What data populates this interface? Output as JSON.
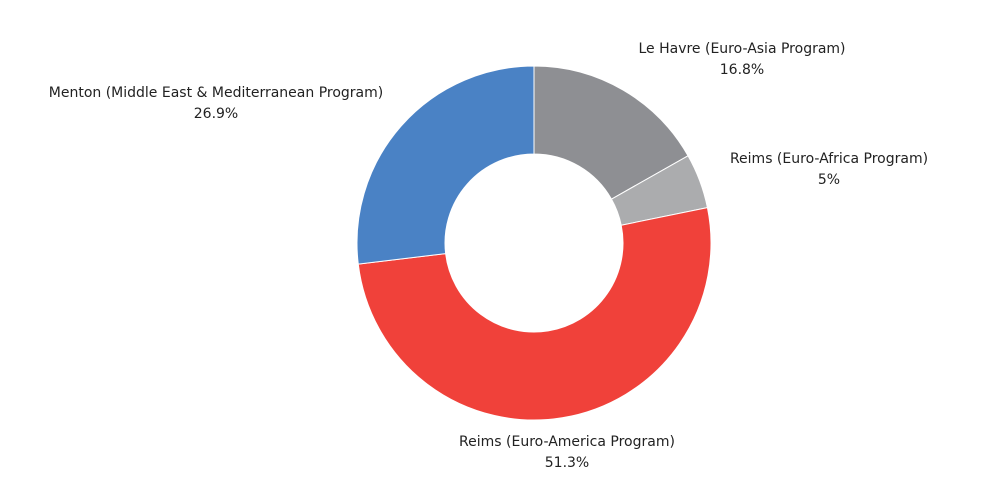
{
  "chart_data": {
    "type": "pie",
    "variant": "donut",
    "title": "",
    "slices": [
      {
        "label": "Le Havre (Euro-Asia Program)",
        "value": 16.8,
        "value_label": "16.8%",
        "color": "#8e8f93"
      },
      {
        "label": "Reims (Euro-Africa Program)",
        "value": 5,
        "value_label": "5%",
        "color": "#abacae"
      },
      {
        "label": "Reims (Euro-America Program)",
        "value": 51.3,
        "value_label": "51.3%",
        "color": "#f0413a"
      },
      {
        "label": "Menton (Middle East & Mediterranean Program)",
        "value": 26.9,
        "value_label": "26.9%",
        "color": "#4a82c5"
      }
    ],
    "legend": "none",
    "start_angle": "12 o'clock",
    "direction": "clockwise"
  }
}
